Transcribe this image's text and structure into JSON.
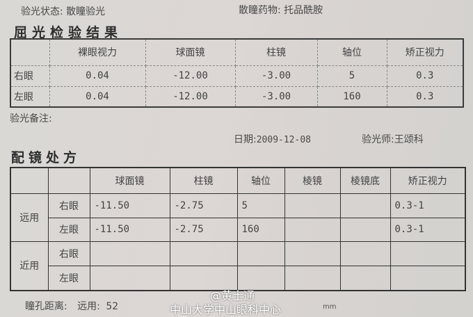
{
  "header": {
    "status_label": "验光状态:",
    "status_value": "散瞳验光",
    "drug_label": "散瞳药物:",
    "drug_value": "托品酰胺"
  },
  "refraction": {
    "title": "屈光检验结果",
    "columns": [
      "",
      "裸眼视力",
      "球面镜",
      "柱镜",
      "轴位",
      "矫正视力"
    ],
    "rows": [
      {
        "eye": "右眼",
        "uncorrected": "0.04",
        "sphere": "-12.00",
        "cylinder": "-3.00",
        "axis": "5",
        "corrected": "0.3"
      },
      {
        "eye": "左眼",
        "uncorrected": "0.04",
        "sphere": "-12.00",
        "cylinder": "-3.00",
        "axis": "160",
        "corrected": "0.3"
      }
    ]
  },
  "notes_label": "验光备注:",
  "date_label": "日期:",
  "date_value": "2009-12-08",
  "optometrist_label": "验光师:",
  "optometrist_value": "王颂科",
  "prescription": {
    "title": "配镜处方",
    "columns": [
      "",
      "",
      "球面镜",
      "柱镜",
      "轴位",
      "棱镜",
      "棱镜底",
      "矫正视力"
    ],
    "groups": [
      {
        "label": "远用",
        "rows": [
          {
            "eye": "右眼",
            "sphere": "-11.50",
            "cylinder": "-2.75",
            "axis": "5",
            "prism": "",
            "base": "",
            "corrected": "0.3-1"
          },
          {
            "eye": "左眼",
            "sphere": "-11.50",
            "cylinder": "-2.75",
            "axis": "160",
            "prism": "",
            "base": "",
            "corrected": "0.3-1"
          }
        ]
      },
      {
        "label": "近用",
        "rows": [
          {
            "eye": "右眼",
            "sphere": "",
            "cylinder": "",
            "axis": "",
            "prism": "",
            "base": "",
            "corrected": ""
          },
          {
            "eye": "左眼",
            "sphere": "",
            "cylinder": "",
            "axis": "",
            "prism": "",
            "base": "",
            "corrected": ""
          }
        ]
      }
    ]
  },
  "pd": {
    "label": "瞳孔距离:",
    "far_label": "远用:",
    "far_value": "52",
    "unit": "mm"
  },
  "watermark": {
    "line1": "@黄士通",
    "line2": "中山大学中山眼科中心"
  }
}
